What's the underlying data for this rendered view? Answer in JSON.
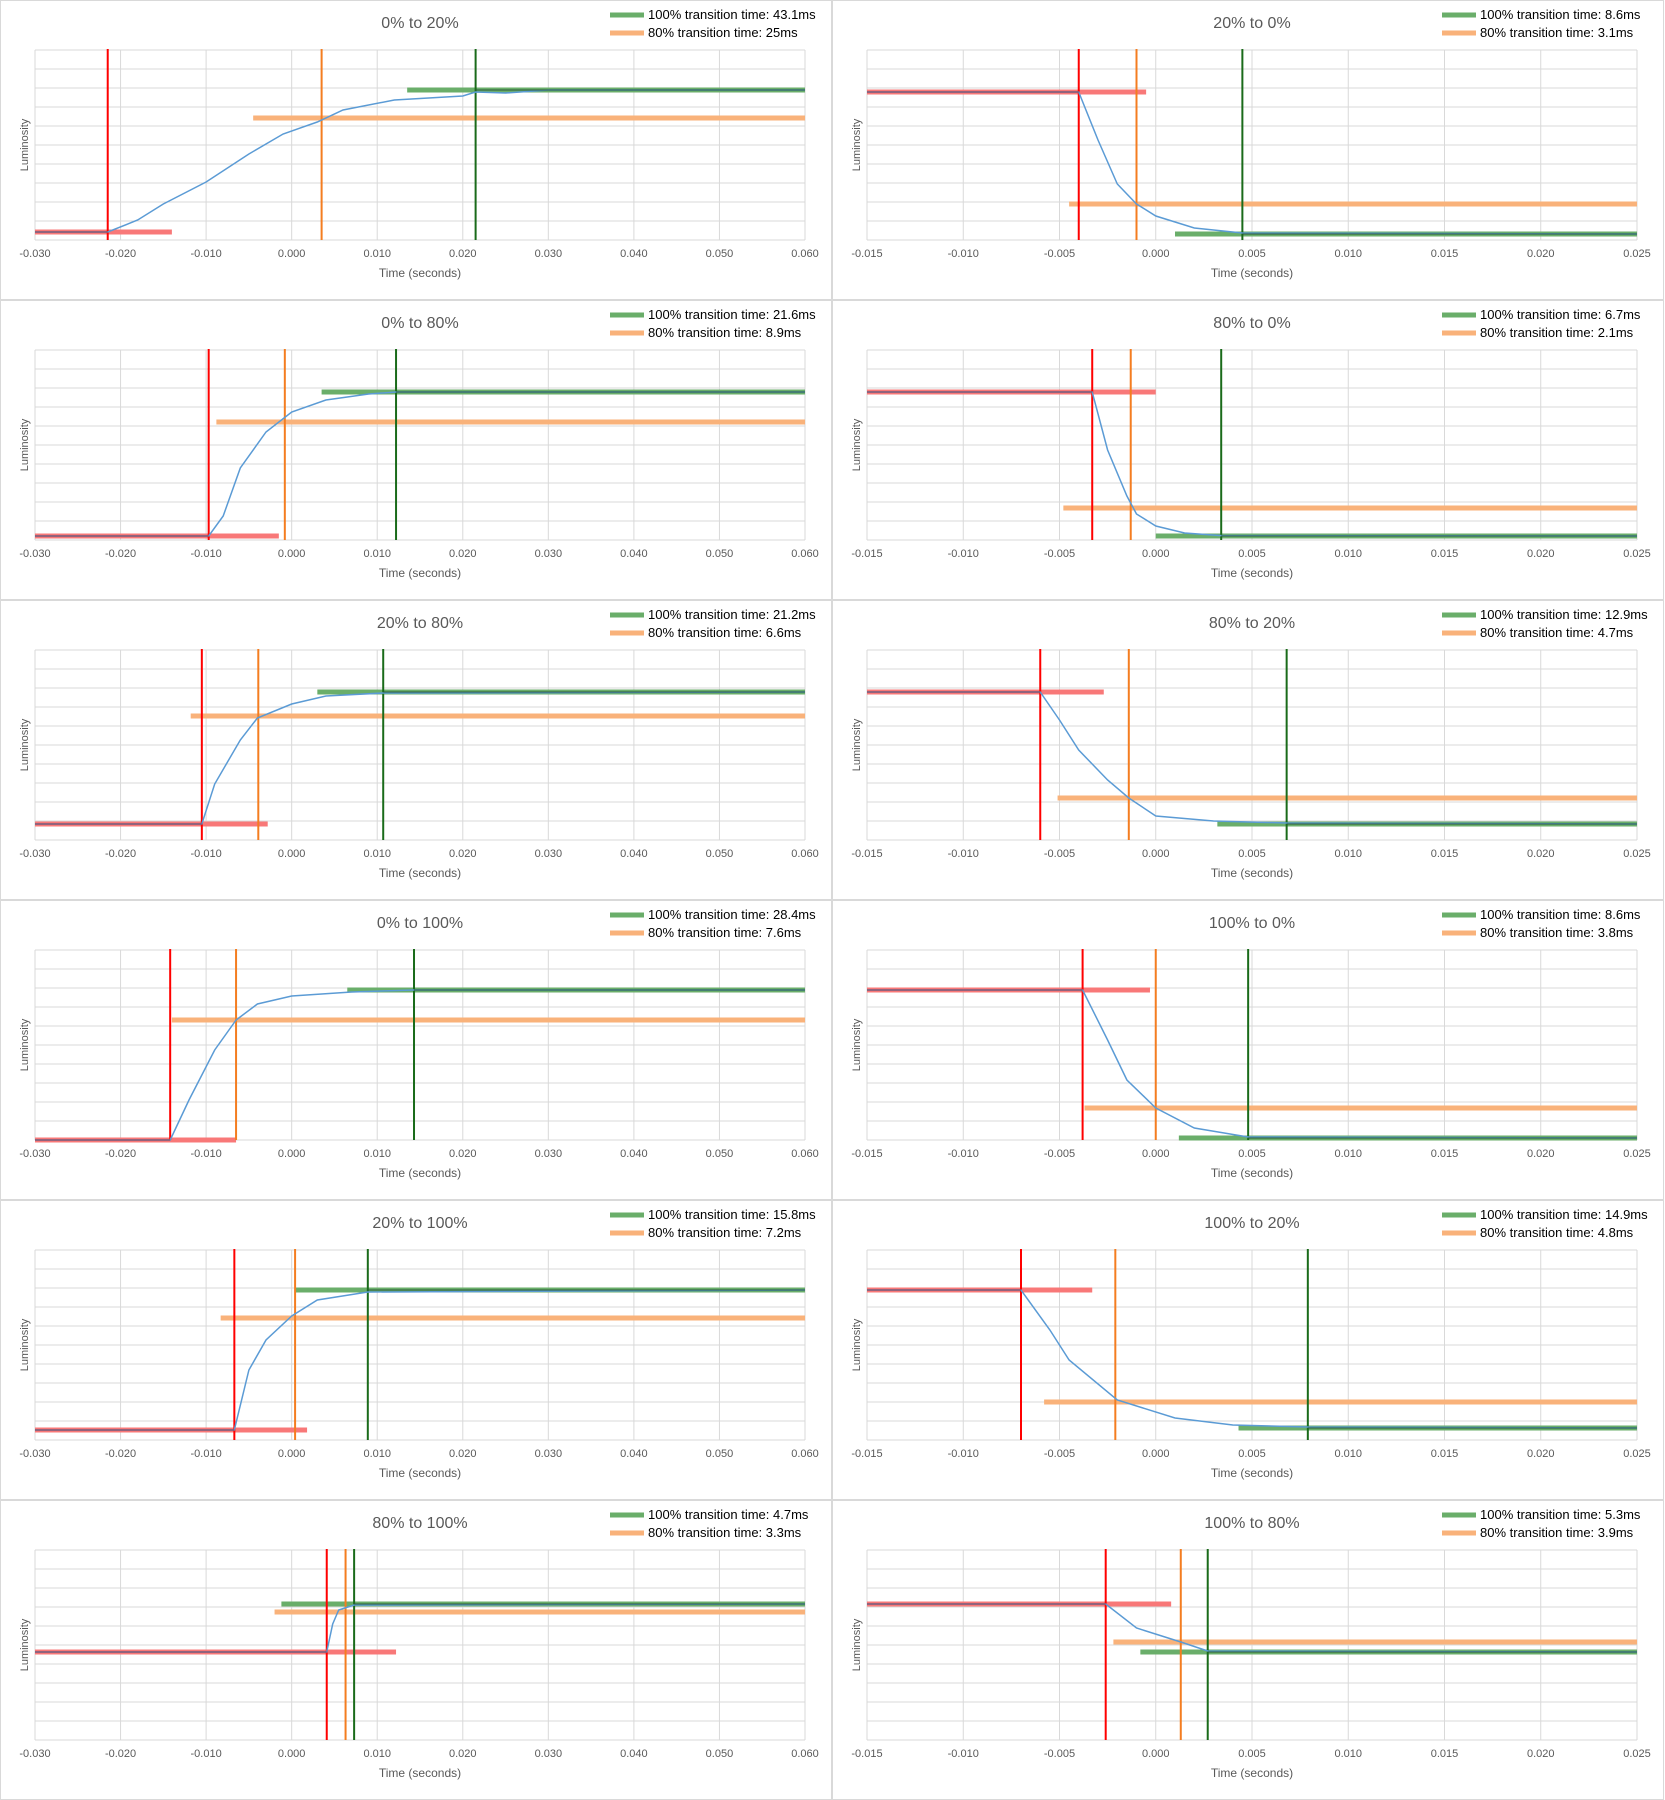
{
  "chart_data": [
    {
      "type": "line",
      "title": "0% to 20%",
      "xlabel": "Time (seconds)",
      "ylabel": "Luminosity",
      "xlim": [
        -0.03,
        0.06
      ],
      "xticks": [
        "-0.030",
        "-0.020",
        "-0.010",
        "0.000",
        "0.010",
        "0.020",
        "0.030",
        "0.040",
        "0.050",
        "0.060"
      ],
      "legend": [
        "100% transition time: 43.1ms",
        "80% transition time: 25ms"
      ],
      "levels": {
        "start": 0.04,
        "end": 0.75,
        "threshold80": 0.61
      },
      "ranges": {
        "start": [
          -0.03,
          -0.014
        ],
        "threshold80": [
          -0.0045,
          0.06
        ],
        "end": [
          0.0135,
          0.06
        ]
      },
      "vlines": {
        "red": -0.0215,
        "orange": 0.0035,
        "green": 0.0215
      },
      "curve": {
        "shape": "rise",
        "t0": -0.0215,
        "t1": 0.0215,
        "pts": [
          [
            -0.03,
            0.04
          ],
          [
            -0.0215,
            0.04
          ],
          [
            -0.018,
            0.1
          ],
          [
            -0.015,
            0.18
          ],
          [
            -0.01,
            0.29
          ],
          [
            -0.005,
            0.43
          ],
          [
            -0.001,
            0.53
          ],
          [
            0.003,
            0.59
          ],
          [
            0.006,
            0.65
          ],
          [
            0.012,
            0.7
          ],
          [
            0.02,
            0.72
          ],
          [
            0.0215,
            0.74
          ],
          [
            0.025,
            0.735
          ],
          [
            0.03,
            0.75
          ],
          [
            0.06,
            0.75
          ]
        ]
      }
    },
    {
      "type": "line",
      "title": "20% to 0%",
      "xlabel": "Time (seconds)",
      "ylabel": "Luminosity",
      "xlim": [
        -0.015,
        0.025
      ],
      "xticks": [
        "-0.015",
        "-0.010",
        "-0.005",
        "0.000",
        "0.005",
        "0.010",
        "0.015",
        "0.020",
        "0.025"
      ],
      "legend": [
        "100% transition time: 8.6ms",
        "80% transition time: 3.1ms"
      ],
      "levels": {
        "start": 0.74,
        "end": 0.03,
        "threshold80": 0.18
      },
      "ranges": {
        "start": [
          -0.015,
          -0.0005
        ],
        "threshold80": [
          -0.0045,
          0.025
        ],
        "end": [
          0.001,
          0.025
        ]
      },
      "vlines": {
        "red": -0.004,
        "orange": -0.001,
        "green": 0.0045
      },
      "curve": {
        "shape": "fall",
        "t0": -0.004,
        "t1": 0.0045,
        "pts": [
          [
            -0.015,
            0.74
          ],
          [
            -0.004,
            0.74
          ],
          [
            -0.003,
            0.5
          ],
          [
            -0.002,
            0.28
          ],
          [
            -0.001,
            0.18
          ],
          [
            0.0,
            0.12
          ],
          [
            0.002,
            0.06
          ],
          [
            0.0045,
            0.035
          ],
          [
            0.025,
            0.03
          ]
        ]
      }
    },
    {
      "type": "line",
      "title": "0% to 80%",
      "xlabel": "Time (seconds)",
      "ylabel": "Luminosity",
      "xlim": [
        -0.03,
        0.06
      ],
      "xticks": [
        "-0.030",
        "-0.020",
        "-0.010",
        "0.000",
        "0.010",
        "0.020",
        "0.030",
        "0.040",
        "0.050",
        "0.060"
      ],
      "legend": [
        "100% transition time: 21.6ms",
        "80% transition time: 8.9ms"
      ],
      "levels": {
        "start": 0.02,
        "end": 0.74,
        "threshold80": 0.59
      },
      "ranges": {
        "start": [
          -0.03,
          -0.0015
        ],
        "threshold80": [
          -0.0088,
          0.06
        ],
        "end": [
          0.0035,
          0.06
        ]
      },
      "vlines": {
        "red": -0.0097,
        "orange": -0.0008,
        "green": 0.0122
      },
      "curve": {
        "shape": "rise",
        "t0": -0.0097,
        "t1": 0.0122,
        "pts": [
          [
            -0.03,
            0.02
          ],
          [
            -0.0097,
            0.02
          ],
          [
            -0.008,
            0.12
          ],
          [
            -0.006,
            0.36
          ],
          [
            -0.003,
            0.54
          ],
          [
            0.0,
            0.64
          ],
          [
            0.004,
            0.7
          ],
          [
            0.009,
            0.73
          ],
          [
            0.0122,
            0.74
          ],
          [
            0.06,
            0.74
          ]
        ]
      }
    },
    {
      "type": "line",
      "title": "80% to 0%",
      "xlabel": "Time (seconds)",
      "ylabel": "Luminosity",
      "xlim": [
        -0.015,
        0.025
      ],
      "xticks": [
        "-0.015",
        "-0.010",
        "-0.005",
        "0.000",
        "0.005",
        "0.010",
        "0.015",
        "0.020",
        "0.025"
      ],
      "legend": [
        "100% transition time: 6.7ms",
        "80% transition time: 2.1ms"
      ],
      "levels": {
        "start": 0.74,
        "end": 0.02,
        "threshold80": 0.16
      },
      "ranges": {
        "start": [
          -0.015,
          0.0
        ],
        "threshold80": [
          -0.0048,
          0.025
        ],
        "end": [
          0.0,
          0.025
        ]
      },
      "vlines": {
        "red": -0.0033,
        "orange": -0.0013,
        "green": 0.0034
      },
      "curve": {
        "shape": "fall",
        "t0": -0.0033,
        "t1": 0.0034,
        "pts": [
          [
            -0.015,
            0.74
          ],
          [
            -0.0033,
            0.74
          ],
          [
            -0.0025,
            0.45
          ],
          [
            -0.0015,
            0.22
          ],
          [
            -0.001,
            0.13
          ],
          [
            0.0,
            0.07
          ],
          [
            0.0015,
            0.035
          ],
          [
            0.0034,
            0.022
          ],
          [
            0.025,
            0.02
          ]
        ]
      }
    },
    {
      "type": "line",
      "title": "20% to 80%",
      "xlabel": "Time (seconds)",
      "ylabel": "Luminosity",
      "xlim": [
        -0.03,
        0.06
      ],
      "xticks": [
        "-0.030",
        "-0.020",
        "-0.010",
        "0.000",
        "0.010",
        "0.020",
        "0.030",
        "0.040",
        "0.050",
        "0.060"
      ],
      "legend": [
        "100% transition time: 21.2ms",
        "80% transition time: 6.6ms"
      ],
      "levels": {
        "start": 0.08,
        "end": 0.74,
        "threshold80": 0.62
      },
      "ranges": {
        "start": [
          -0.03,
          -0.0028
        ],
        "threshold80": [
          -0.0118,
          0.06
        ],
        "end": [
          0.003,
          0.06
        ]
      },
      "vlines": {
        "red": -0.0105,
        "orange": -0.0039,
        "green": 0.0107
      },
      "curve": {
        "shape": "rise",
        "t0": -0.0105,
        "t1": 0.0107,
        "pts": [
          [
            -0.03,
            0.08
          ],
          [
            -0.0105,
            0.08
          ],
          [
            -0.009,
            0.28
          ],
          [
            -0.006,
            0.5
          ],
          [
            -0.004,
            0.61
          ],
          [
            0.0,
            0.68
          ],
          [
            0.004,
            0.72
          ],
          [
            0.0107,
            0.735
          ],
          [
            0.06,
            0.74
          ]
        ]
      }
    },
    {
      "type": "line",
      "title": "80% to 20%",
      "xlabel": "Time (seconds)",
      "ylabel": "Luminosity",
      "xlim": [
        -0.015,
        0.025
      ],
      "xticks": [
        "-0.015",
        "-0.010",
        "-0.005",
        "0.000",
        "0.005",
        "0.010",
        "0.015",
        "0.020",
        "0.025"
      ],
      "legend": [
        "100% transition time: 12.9ms",
        "80% transition time: 4.7ms"
      ],
      "levels": {
        "start": 0.74,
        "end": 0.08,
        "threshold80": 0.21
      },
      "ranges": {
        "start": [
          -0.015,
          -0.0027
        ],
        "threshold80": [
          -0.0051,
          0.025
        ],
        "end": [
          0.0032,
          0.025
        ]
      },
      "vlines": {
        "red": -0.006,
        "orange": -0.0014,
        "green": 0.0068
      },
      "curve": {
        "shape": "fall",
        "t0": -0.006,
        "t1": 0.0068,
        "pts": [
          [
            -0.015,
            0.74
          ],
          [
            -0.006,
            0.74
          ],
          [
            -0.005,
            0.6
          ],
          [
            -0.004,
            0.45
          ],
          [
            -0.0025,
            0.3
          ],
          [
            -0.0014,
            0.21
          ],
          [
            0.0,
            0.12
          ],
          [
            0.003,
            0.095
          ],
          [
            0.0068,
            0.085
          ],
          [
            0.025,
            0.08
          ]
        ]
      }
    },
    {
      "type": "line",
      "title": "0% to 100%",
      "xlabel": "Time (seconds)",
      "ylabel": "Luminosity",
      "xlim": [
        -0.03,
        0.06
      ],
      "xticks": [
        "-0.030",
        "-0.020",
        "-0.010",
        "0.000",
        "0.010",
        "0.020",
        "0.030",
        "0.040",
        "0.050",
        "0.060"
      ],
      "legend": [
        "100% transition time: 28.4ms",
        "80% transition time: 7.6ms"
      ],
      "levels": {
        "start": 0.0,
        "end": 0.75,
        "threshold80": 0.6
      },
      "ranges": {
        "start": [
          -0.03,
          -0.0065
        ],
        "threshold80": [
          -0.014,
          0.06
        ],
        "end": [
          0.0065,
          0.06
        ]
      },
      "vlines": {
        "red": -0.0142,
        "orange": -0.0065,
        "green": 0.0143
      },
      "curve": {
        "shape": "rise",
        "t0": -0.0142,
        "t1": 0.0143,
        "pts": [
          [
            -0.03,
            0.0
          ],
          [
            -0.0142,
            0.0
          ],
          [
            -0.012,
            0.2
          ],
          [
            -0.009,
            0.45
          ],
          [
            -0.0065,
            0.6
          ],
          [
            -0.004,
            0.68
          ],
          [
            0.0,
            0.72
          ],
          [
            0.007,
            0.74
          ],
          [
            0.0143,
            0.75
          ],
          [
            0.06,
            0.75
          ]
        ]
      }
    },
    {
      "type": "line",
      "title": "100% to 0%",
      "xlabel": "Time (seconds)",
      "ylabel": "Luminosity",
      "xlim": [
        -0.015,
        0.025
      ],
      "xticks": [
        "-0.015",
        "-0.010",
        "-0.005",
        "0.000",
        "0.005",
        "0.010",
        "0.015",
        "0.020",
        "0.025"
      ],
      "legend": [
        "100% transition time: 8.6ms",
        "80% transition time: 3.8ms"
      ],
      "levels": {
        "start": 0.75,
        "end": 0.01,
        "threshold80": 0.16
      },
      "ranges": {
        "start": [
          -0.015,
          -0.0003
        ],
        "threshold80": [
          -0.0037,
          0.025
        ],
        "end": [
          0.0012,
          0.025
        ]
      },
      "vlines": {
        "red": -0.0038,
        "orange": 0.0,
        "green": 0.0048
      },
      "curve": {
        "shape": "fall",
        "t0": -0.0038,
        "t1": 0.0048,
        "pts": [
          [
            -0.015,
            0.75
          ],
          [
            -0.0038,
            0.75
          ],
          [
            -0.0025,
            0.5
          ],
          [
            -0.0015,
            0.3
          ],
          [
            0.0,
            0.16
          ],
          [
            0.002,
            0.06
          ],
          [
            0.0048,
            0.015
          ],
          [
            0.025,
            0.01
          ]
        ]
      }
    },
    {
      "type": "line",
      "title": "20% to 100%",
      "xlabel": "Time (seconds)",
      "ylabel": "Luminosity",
      "xlim": [
        -0.03,
        0.06
      ],
      "xticks": [
        "-0.030",
        "-0.020",
        "-0.010",
        "0.000",
        "0.010",
        "0.020",
        "0.030",
        "0.040",
        "0.050",
        "0.060"
      ],
      "legend": [
        "100% transition time: 15.8ms",
        "80% transition time: 7.2ms"
      ],
      "levels": {
        "start": 0.05,
        "end": 0.75,
        "threshold80": 0.61
      },
      "ranges": {
        "start": [
          -0.03,
          0.0018
        ],
        "threshold80": [
          -0.0083,
          0.06
        ],
        "end": [
          0.0005,
          0.06
        ]
      },
      "vlines": {
        "red": -0.0067,
        "orange": 0.0004,
        "green": 0.0089
      },
      "curve": {
        "shape": "rise",
        "t0": -0.0067,
        "t1": 0.0089,
        "pts": [
          [
            -0.03,
            0.05
          ],
          [
            -0.0067,
            0.05
          ],
          [
            -0.005,
            0.35
          ],
          [
            -0.003,
            0.5
          ],
          [
            0.0,
            0.62
          ],
          [
            0.003,
            0.7
          ],
          [
            0.0089,
            0.74
          ],
          [
            0.06,
            0.75
          ]
        ]
      }
    },
    {
      "type": "line",
      "title": "100% to 20%",
      "xlabel": "Time (seconds)",
      "ylabel": "Luminosity",
      "xlim": [
        -0.015,
        0.025
      ],
      "xticks": [
        "-0.015",
        "-0.010",
        "-0.005",
        "0.000",
        "0.005",
        "0.010",
        "0.015",
        "0.020",
        "0.025"
      ],
      "legend": [
        "100% transition time: 14.9ms",
        "80% transition time: 4.8ms"
      ],
      "levels": {
        "start": 0.75,
        "end": 0.06,
        "threshold80": 0.19
      },
      "ranges": {
        "start": [
          -0.015,
          -0.0033
        ],
        "threshold80": [
          -0.0058,
          0.025
        ],
        "end": [
          0.0043,
          0.025
        ]
      },
      "vlines": {
        "red": -0.007,
        "orange": -0.0021,
        "green": 0.0079
      },
      "curve": {
        "shape": "fall",
        "t0": -0.007,
        "t1": 0.0079,
        "pts": [
          [
            -0.015,
            0.75
          ],
          [
            -0.007,
            0.75
          ],
          [
            -0.0055,
            0.55
          ],
          [
            -0.0045,
            0.4
          ],
          [
            -0.002,
            0.2
          ],
          [
            0.001,
            0.11
          ],
          [
            0.004,
            0.075
          ],
          [
            0.0079,
            0.065
          ],
          [
            0.025,
            0.06
          ]
        ]
      }
    },
    {
      "type": "line",
      "title": "80% to 100%",
      "xlabel": "Time (seconds)",
      "ylabel": "Luminosity",
      "xlim": [
        -0.03,
        0.06
      ],
      "xticks": [
        "-0.030",
        "-0.020",
        "-0.010",
        "0.000",
        "0.010",
        "0.020",
        "0.030",
        "0.040",
        "0.050",
        "0.060"
      ],
      "legend": [
        "100% transition time: 4.7ms",
        "80% transition time: 3.3ms"
      ],
      "levels": {
        "start": 0.44,
        "end": 0.68,
        "threshold80": 0.64
      },
      "ranges": {
        "start": [
          -0.03,
          0.0122
        ],
        "threshold80": [
          -0.002,
          0.06
        ],
        "end": [
          -0.0012,
          0.06
        ]
      },
      "vlines": {
        "red": 0.0041,
        "orange": 0.0063,
        "green": 0.0073
      },
      "curve": {
        "shape": "rise",
        "t0": 0.0041,
        "t1": 0.0073,
        "pts": [
          [
            -0.03,
            0.44
          ],
          [
            0.0041,
            0.44
          ],
          [
            0.0048,
            0.58
          ],
          [
            0.0055,
            0.65
          ],
          [
            0.0073,
            0.675
          ],
          [
            0.06,
            0.68
          ]
        ]
      }
    },
    {
      "type": "line",
      "title": "100% to 80%",
      "xlabel": "Time (seconds)",
      "ylabel": "Luminosity",
      "xlim": [
        -0.015,
        0.025
      ],
      "xticks": [
        "-0.015",
        "-0.010",
        "-0.005",
        "0.000",
        "0.005",
        "0.010",
        "0.015",
        "0.020",
        "0.025"
      ],
      "legend": [
        "100% transition time: 5.3ms",
        "80% transition time: 3.9ms"
      ],
      "levels": {
        "start": 0.68,
        "end": 0.44,
        "threshold80": 0.49
      },
      "ranges": {
        "start": [
          -0.015,
          0.0008
        ],
        "threshold80": [
          -0.0022,
          0.025
        ],
        "end": [
          -0.0008,
          0.025
        ]
      },
      "vlines": {
        "red": -0.0026,
        "orange": 0.0013,
        "green": 0.0027
      },
      "curve": {
        "shape": "fall",
        "t0": -0.0026,
        "t1": 0.0027,
        "pts": [
          [
            -0.015,
            0.68
          ],
          [
            -0.0026,
            0.68
          ],
          [
            -0.001,
            0.56
          ],
          [
            0.0013,
            0.49
          ],
          [
            0.0027,
            0.445
          ],
          [
            0.025,
            0.44
          ]
        ]
      }
    }
  ],
  "colors": {
    "red": "#ff0000",
    "orange": "#f47d20",
    "green": "#1a6b1a",
    "curve": "#5b9bd5",
    "redBar": "#f87878",
    "orangeBar": "#f9b27a",
    "greenBar": "#6aae6a"
  }
}
